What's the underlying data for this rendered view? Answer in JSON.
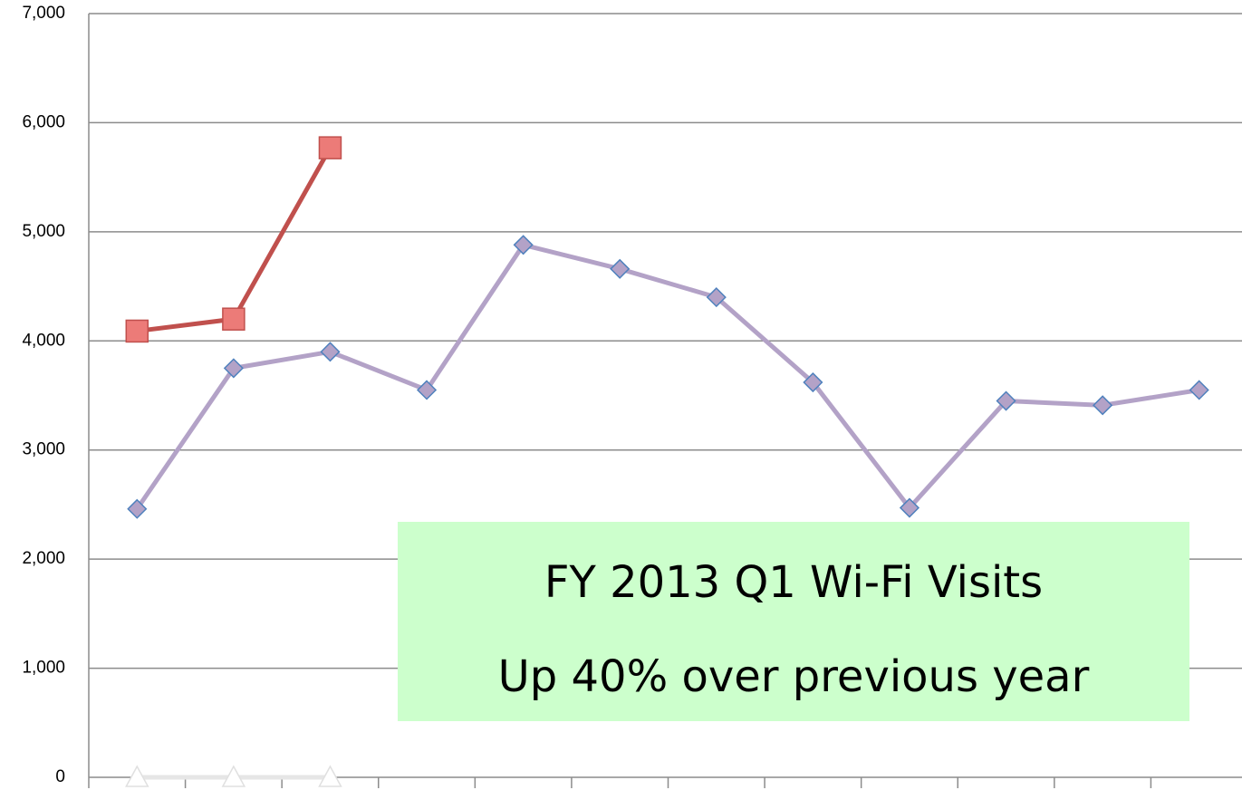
{
  "chart_data": {
    "type": "line",
    "categories": [
      null,
      null,
      null,
      null,
      null,
      null,
      null,
      null,
      null,
      null,
      null,
      null
    ],
    "series": [
      {
        "color": "#b3a2c7",
        "marker": "diamond",
        "marker_fill": "#b3a2c7",
        "marker_stroke": "#4f81bd",
        "values": [
          2460,
          3750,
          3900,
          3550,
          4880,
          4660,
          4400,
          3620,
          2470,
          3450,
          3410,
          3550
        ]
      },
      {
        "color": "#c0504d",
        "marker": "square",
        "marker_fill": "#ec7b78",
        "marker_stroke": "#c0504d",
        "values": [
          4090,
          4200,
          5770,
          null,
          null,
          null,
          null,
          null,
          null,
          null,
          null,
          null
        ]
      },
      {
        "color": "#e6e6e6",
        "marker": "triangle",
        "marker_fill": "#ffffff",
        "marker_stroke": "#e0e0e0",
        "values": [
          0,
          0,
          0,
          null,
          null,
          null,
          null,
          null,
          null,
          null,
          null,
          null
        ]
      }
    ],
    "ylim": [
      0,
      7000
    ],
    "yticks": [
      0,
      {
        "value": 1000,
        "label": "1,000"
      },
      {
        "value": 2000,
        "label": "2,000"
      },
      {
        "value": 3000,
        "label": "3,000"
      },
      {
        "value": 4000,
        "label": "4,000"
      },
      {
        "value": 5000,
        "label": "5,000"
      },
      {
        "value": 6000,
        "label": "6,000"
      },
      {
        "value": 7000,
        "label": "7,000"
      }
    ],
    "grid": true,
    "annotation": {
      "lines": [
        "FY 2013 Q1 Wi-Fi Visits",
        "Up 40% over previous year"
      ],
      "background": "#ccffcc"
    }
  }
}
